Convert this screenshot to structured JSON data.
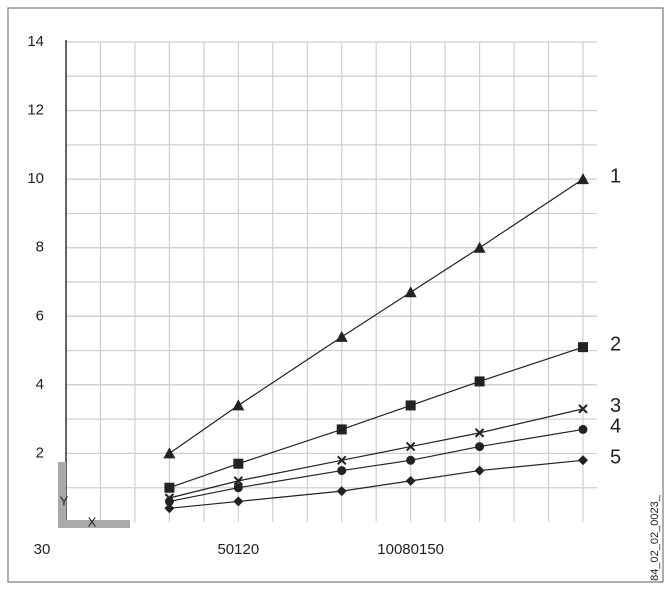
{
  "chart_data": {
    "type": "line",
    "axis_labels": {
      "y": "Y",
      "x": "X"
    },
    "code": "84_02_02_0023_",
    "x": [
      3,
      5,
      8,
      10,
      12,
      15
    ],
    "xlim": [
      0,
      15
    ],
    "xticks": [
      {
        "value": 0,
        "label": "30"
      },
      {
        "value": 5,
        "label": "50120"
      },
      {
        "value": 10,
        "label": "10080150"
      }
    ],
    "ylim": [
      0,
      14
    ],
    "yticks": [
      2,
      4,
      6,
      8,
      10,
      12,
      14
    ],
    "grid": true,
    "minor_grid": true,
    "series": [
      {
        "name": "1",
        "color": "#222222",
        "marker": "triangle",
        "values": [
          2.0,
          3.4,
          5.4,
          6.7,
          8.0,
          10.0
        ]
      },
      {
        "name": "2",
        "color": "#222222",
        "marker": "square",
        "values": [
          1.0,
          1.7,
          2.7,
          3.4,
          4.1,
          5.1
        ]
      },
      {
        "name": "3",
        "color": "#222222",
        "marker": "x",
        "values": [
          0.7,
          1.2,
          1.8,
          2.2,
          2.6,
          3.3
        ]
      },
      {
        "name": "4",
        "color": "#222222",
        "marker": "circle",
        "values": [
          0.6,
          1.0,
          1.5,
          1.8,
          2.2,
          2.7
        ]
      },
      {
        "name": "5",
        "color": "#222222",
        "marker": "diamond",
        "values": [
          0.4,
          0.6,
          0.9,
          1.2,
          1.5,
          1.8
        ]
      }
    ]
  }
}
